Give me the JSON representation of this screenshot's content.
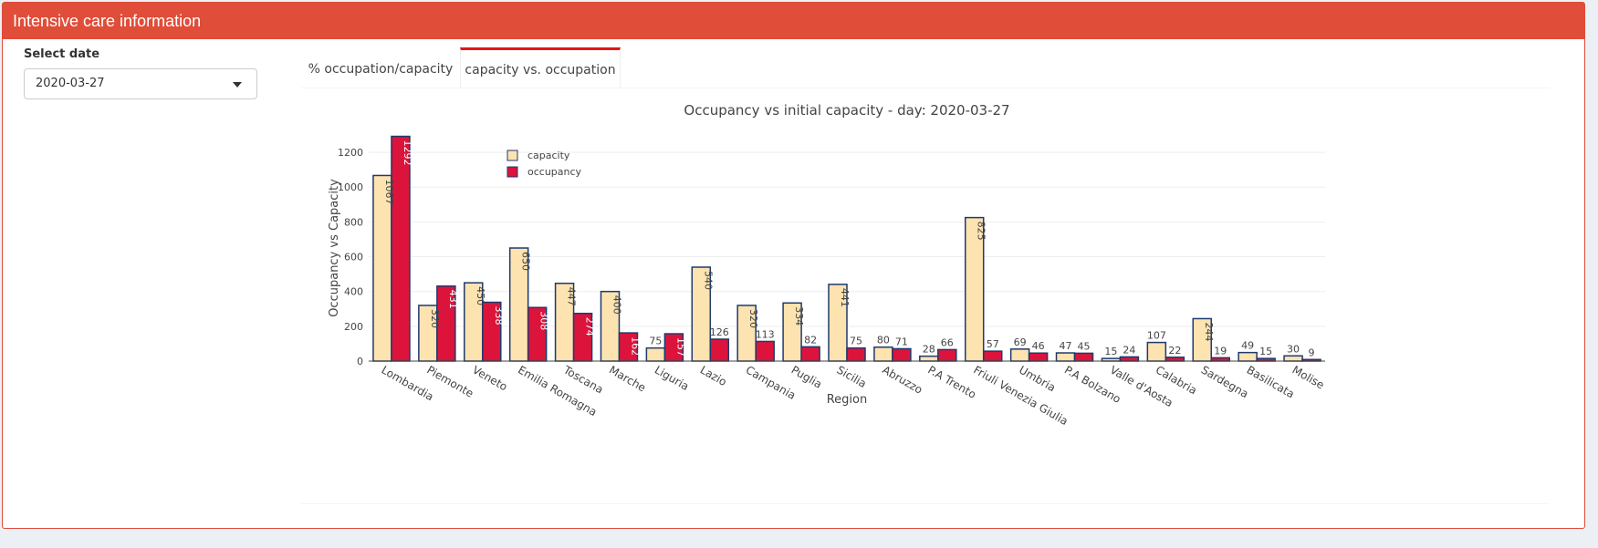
{
  "header": {
    "title": "Intensive care information"
  },
  "controls": {
    "date_label": "Select date",
    "date_value": "2020-03-27"
  },
  "tabs": [
    {
      "label": "% occupation/capacity",
      "active": false
    },
    {
      "label": "capacity vs. occupation",
      "active": true
    }
  ],
  "colors": {
    "capacity": "#fde3b0",
    "occupancy": "#dc143c",
    "outline": "#1f3a6e",
    "header": "#e04d39"
  },
  "chart_data": {
    "type": "bar",
    "title": "Occupancy vs initial capacity - day: 2020-03-27",
    "xlabel": "Region",
    "ylabel": "Occupancy vs Capacity",
    "ylim": [
      0,
      1300
    ],
    "yticks": [
      0,
      200,
      400,
      600,
      800,
      1000,
      1200
    ],
    "legend": "top-left",
    "grid": true,
    "categories": [
      "Lombardia",
      "Piemonte",
      "Veneto",
      "Emilia Romagna",
      "Toscana",
      "Marche",
      "Liguria",
      "Lazio",
      "Campania",
      "Puglia",
      "Sicilia",
      "Abruzzo",
      "P.A Trento",
      "Friuli Venezia Giulia",
      "Umbria",
      "P.A Bolzano",
      "Valle d'Aosta",
      "Calabria",
      "Sardegna",
      "Basilicata",
      "Molise"
    ],
    "series": [
      {
        "name": "capacity",
        "values": [
          1067,
          320,
          450,
          650,
          447,
          400,
          75,
          540,
          320,
          334,
          441,
          80,
          28,
          825,
          69,
          47,
          15,
          107,
          244,
          49,
          30
        ]
      },
      {
        "name": "occupancy",
        "values": [
          1292,
          431,
          338,
          308,
          274,
          162,
          157,
          126,
          113,
          82,
          75,
          71,
          66,
          57,
          46,
          45,
          24,
          22,
          19,
          15,
          9
        ]
      }
    ]
  }
}
